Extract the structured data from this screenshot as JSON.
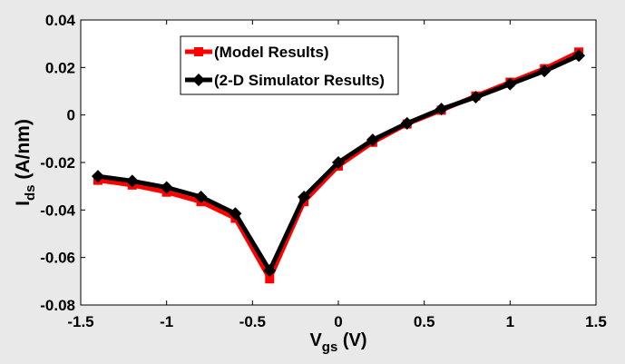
{
  "chart_data": {
    "type": "line",
    "title": "",
    "xlabel": {
      "main": "V",
      "sub": "gs",
      "unit": " (V)"
    },
    "ylabel": {
      "main": "I",
      "sub": "ds",
      "unit": " (A/nm)"
    },
    "xlim": [
      -1.5,
      1.5
    ],
    "ylim": [
      -0.08,
      0.04
    ],
    "xticks": [
      -1.5,
      -1,
      -0.5,
      0,
      0.5,
      1,
      1.5
    ],
    "xtick_labels": [
      "-1.5",
      "-1",
      "-0.5",
      "0",
      "0.5",
      "1",
      "1.5"
    ],
    "yticks": [
      -0.08,
      -0.06,
      -0.04,
      -0.02,
      0,
      0.02,
      0.04
    ],
    "ytick_labels": [
      "-0.08",
      "-0.06",
      "-0.04",
      "-0.02",
      "0",
      "0.02",
      "0.04"
    ],
    "grid": false,
    "legend_position": "top-left",
    "x": [
      -1.4,
      -1.2,
      -1.0,
      -0.8,
      -0.6,
      -0.4,
      -0.2,
      0.0,
      0.2,
      0.4,
      0.6,
      0.8,
      1.0,
      1.2,
      1.4
    ],
    "series": [
      {
        "name": "(Model Results)",
        "color": "#ff0000",
        "marker": "square",
        "values": [
          -0.0275,
          -0.0295,
          -0.0325,
          -0.0365,
          -0.0435,
          -0.069,
          -0.0365,
          -0.0215,
          -0.0115,
          -0.0038,
          0.002,
          0.008,
          0.0138,
          0.0195,
          0.0265
        ]
      },
      {
        "name": "(2-D Simulator Results)",
        "color": "#000000",
        "marker": "diamond",
        "values": [
          -0.0258,
          -0.0278,
          -0.0305,
          -0.0345,
          -0.0415,
          -0.0655,
          -0.0345,
          -0.02,
          -0.0105,
          -0.0035,
          0.0025,
          0.0075,
          0.013,
          0.0185,
          0.025
        ]
      }
    ]
  }
}
